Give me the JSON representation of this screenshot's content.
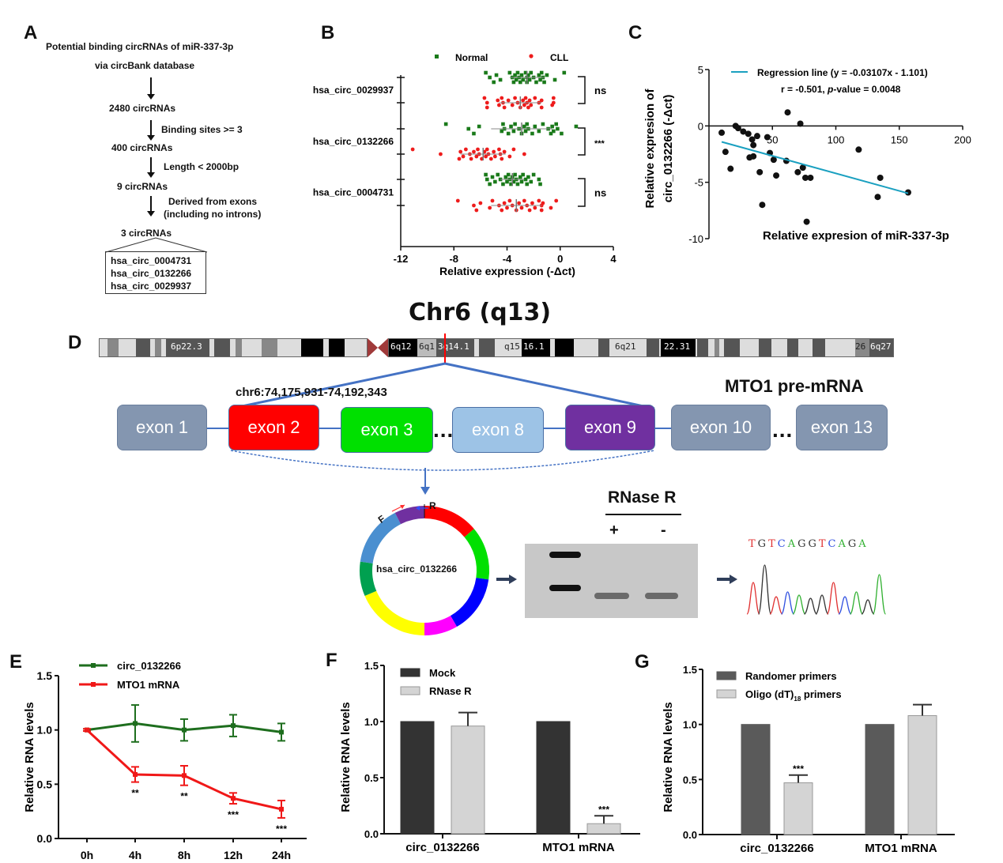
{
  "panels": {
    "A": {
      "letter": "A",
      "title_line1": "Potential binding circRNAs of miR-337-3p",
      "title_line2": "via circBank database",
      "steps": [
        {
          "count": "2480 circRNAs",
          "filter": "Binding sites >= 3"
        },
        {
          "count": "400 circRNAs",
          "filter": "Length < 2000bp"
        },
        {
          "count": "9 circRNAs",
          "filter_line1": "Derived from exons",
          "filter_line2": "(including no introns)"
        },
        {
          "count": "3 circRNAs"
        }
      ],
      "final_list": [
        "hsa_circ_0004731",
        "hsa_circ_0132266",
        "hsa_circ_0029937"
      ]
    },
    "B": {
      "letter": "B"
    },
    "C": {
      "letter": "C"
    },
    "D": {
      "letter": "D",
      "chrom_title": "Chr6 (q13)",
      "chrom_bands": [
        "6p22.3",
        "6q12",
        "6q1",
        "3q14.1",
        "q15",
        "16.1",
        "6q21",
        "22.31",
        "26",
        "6q27"
      ],
      "coord": "chr6:74,175,931-74,192,343",
      "gene_label": "MTO1 pre-mRNA",
      "exons": [
        {
          "label": "exon 1",
          "color": "#8496b0"
        },
        {
          "label": "exon 2",
          "color": "#ff0000"
        },
        {
          "label": "exon 3",
          "color": "#00e000"
        },
        {
          "label": "exon 8",
          "color": "#9dc3e6"
        },
        {
          "label": "exon 9",
          "color": "#7030a0"
        },
        {
          "label": "exon 10",
          "color": "#8496b0"
        },
        {
          "label": "exon 13",
          "color": "#8496b0"
        }
      ],
      "ellipsis": "...",
      "circ_name": "hsa_circ_0132266",
      "circ_segments": [
        "#ff0000",
        "#00e000",
        "#0000ff",
        "#ff00ff",
        "#ffff00",
        "#00a050",
        "#4a8fd0",
        "#7030a0"
      ],
      "primer_f": "F",
      "primer_r": "R",
      "gel_title": "RNase R",
      "gel_lanes": [
        "+",
        "-"
      ],
      "seq_letters": [
        {
          "b": "T",
          "c": "#e03030"
        },
        {
          "b": "G",
          "c": "#333333"
        },
        {
          "b": "T",
          "c": "#e03030"
        },
        {
          "b": "C",
          "c": "#3050e0"
        },
        {
          "b": "A",
          "c": "#30b030"
        },
        {
          "b": "G",
          "c": "#333333"
        },
        {
          "b": "G",
          "c": "#333333"
        },
        {
          "b": "T",
          "c": "#e03030"
        },
        {
          "b": "C",
          "c": "#3050e0"
        },
        {
          "b": "A",
          "c": "#30b030"
        },
        {
          "b": "G",
          "c": "#333333"
        },
        {
          "b": "A",
          "c": "#30b030"
        }
      ]
    },
    "E": {
      "letter": "E"
    },
    "F": {
      "letter": "F"
    },
    "G": {
      "letter": "G"
    }
  },
  "chart_data": [
    {
      "id": "B",
      "type": "scatter",
      "orientation": "horizontal",
      "xlabel": "Relative expression (-Δct)",
      "xlim": [
        -12,
        4
      ],
      "xticks": [
        -12,
        -8,
        -4,
        0,
        4
      ],
      "legend": [
        {
          "name": "Normal",
          "color": "#1a7a1a",
          "marker": "square"
        },
        {
          "name": "CLL",
          "color": "#ee1c1c",
          "marker": "circle"
        }
      ],
      "legend_position": "top",
      "groups": [
        {
          "label": "hsa_circ_0029937",
          "significance": "ns",
          "normal": {
            "mean": -2.5,
            "sd": 1.3,
            "values": [
              -5.6,
              -5.3,
              -5.0,
              -4.8,
              -4.5,
              -3.8,
              -3.6,
              -3.5,
              -3.4,
              -3.3,
              -3.2,
              -3.1,
              -3.0,
              -2.9,
              -2.8,
              -2.6,
              -2.5,
              -2.5,
              -2.4,
              -2.3,
              -2.2,
              -2.0,
              -1.8,
              -1.6,
              -1.5,
              -1.4,
              -1.3,
              -1.2,
              -1.0,
              -0.4,
              0.3
            ]
          },
          "cll": {
            "mean": -3.0,
            "sd": 1.6,
            "values": [
              -5.7,
              -5.5,
              -5.5,
              -4.7,
              -4.6,
              -4.4,
              -4.3,
              -4.2,
              -3.9,
              -3.6,
              -3.4,
              -3.2,
              -3.0,
              -2.8,
              -2.7,
              -2.6,
              -2.5,
              -2.4,
              -2.3,
              -2.2,
              -1.9,
              -1.6,
              -1.4,
              -1.4,
              -0.6,
              -0.5,
              -0.5
            ]
          }
        },
        {
          "label": "hsa_circ_0132266",
          "significance": "***",
          "normal": {
            "mean": -2.9,
            "sd": 2.3,
            "values": [
              -8.6,
              -6.9,
              -6.5,
              -6.1,
              -4.4,
              -4.3,
              -4.2,
              -3.9,
              -3.7,
              -3.5,
              -3.4,
              -3.1,
              -2.9,
              -2.7,
              -2.6,
              -2.5,
              -2.4,
              -2.1,
              -1.9,
              -1.6,
              -1.3,
              -0.9,
              -0.7,
              -0.6,
              -0.5,
              -0.3,
              -0.2,
              0.1,
              1.2
            ]
          },
          "cll": {
            "mean": -5.8,
            "sd": 1.7,
            "values": [
              -11.1,
              -9.0,
              -7.6,
              -7.5,
              -7.3,
              -7.1,
              -6.8,
              -6.7,
              -6.5,
              -6.3,
              -6.2,
              -6.1,
              -5.9,
              -5.7,
              -5.6,
              -5.5,
              -5.4,
              -5.2,
              -5.0,
              -4.9,
              -4.6,
              -4.5,
              -4.4,
              -4.2,
              -3.8,
              -3.5,
              -2.7
            ]
          }
        },
        {
          "label": "hsa_circ_0004731",
          "significance": "ns",
          "normal": {
            "mean": -3.6,
            "sd": 0.9,
            "values": [
              -5.6,
              -5.5,
              -5.3,
              -5.1,
              -4.9,
              -4.7,
              -4.5,
              -4.3,
              -4.1,
              -4.0,
              -3.9,
              -3.8,
              -3.7,
              -3.6,
              -3.5,
              -3.4,
              -3.3,
              -3.2,
              -3.0,
              -2.9,
              -2.8,
              -2.6,
              -2.5,
              -2.4,
              -2.2,
              -2.0,
              -1.6,
              -1.5
            ]
          },
          "cll": {
            "mean": -3.3,
            "sd": 1.9,
            "values": [
              -7.7,
              -6.5,
              -6.3,
              -6.0,
              -5.3,
              -5.1,
              -4.6,
              -4.4,
              -4.2,
              -4.0,
              -3.8,
              -3.6,
              -3.3,
              -3.1,
              -2.9,
              -2.7,
              -2.5,
              -2.3,
              -2.1,
              -1.9,
              -1.6,
              -1.4,
              -1.4,
              -1.3,
              -0.7,
              -0.3
            ]
          }
        }
      ]
    },
    {
      "id": "C",
      "type": "scatter",
      "xlabel": "Relative expresion of miR-337-3p",
      "ylabel_line1": "Relative expresion of",
      "ylabel_line2": "circ_0132266  (-Δct)",
      "xlim": [
        0,
        200
      ],
      "ylim": [
        -10,
        5
      ],
      "xticks": [
        50,
        100,
        150,
        200
      ],
      "yticks": [
        5,
        0,
        -5,
        -10
      ],
      "legend": [
        {
          "name": "Regression line (y = -0.03107x - 1.101)",
          "color": "#1aa0c0"
        }
      ],
      "annotation_r": "r = -0.501,  ",
      "annotation_p_label": "p",
      "annotation_p_value": "-value = 0.0048",
      "regression": {
        "slope": -0.03107,
        "intercept": -1.101,
        "x_range": [
          10,
          157
        ]
      },
      "points": [
        [
          10,
          -0.6
        ],
        [
          13,
          -2.3
        ],
        [
          17,
          -3.8
        ],
        [
          21,
          0.0
        ],
        [
          23,
          -0.2
        ],
        [
          27,
          -0.5
        ],
        [
          31,
          -0.7
        ],
        [
          32,
          -2.8
        ],
        [
          34,
          -1.2
        ],
        [
          35,
          -1.7
        ],
        [
          35,
          -2.7
        ],
        [
          38,
          -0.9
        ],
        [
          40,
          -4.1
        ],
        [
          42,
          -7.0
        ],
        [
          46,
          -1.0
        ],
        [
          48,
          -2.4
        ],
        [
          51,
          -3.0
        ],
        [
          53,
          -4.4
        ],
        [
          61,
          -3.1
        ],
        [
          62,
          1.2
        ],
        [
          70,
          -4.1
        ],
        [
          72,
          0.2
        ],
        [
          74,
          -3.7
        ],
        [
          76,
          -4.6
        ],
        [
          77,
          -8.5
        ],
        [
          80,
          -4.6
        ],
        [
          118,
          -2.1
        ],
        [
          133,
          -6.3
        ],
        [
          135,
          -4.6
        ],
        [
          157,
          -5.9
        ]
      ]
    },
    {
      "id": "E",
      "type": "line",
      "ylabel": "Relative RNA levels",
      "ylim": [
        0,
        1.5
      ],
      "yticks": [
        0.0,
        0.5,
        1.0,
        1.5
      ],
      "categories": [
        "0h",
        "4h",
        "8h",
        "12h",
        "24h"
      ],
      "legend_position": "top-left",
      "series": [
        {
          "name": "circ_0132266",
          "color": "#1e6e1e",
          "values": [
            1.0,
            1.06,
            1.0,
            1.04,
            0.98
          ],
          "errors": [
            0.01,
            0.17,
            0.1,
            0.1,
            0.08
          ],
          "marks": [
            "",
            "",
            "",
            "",
            ""
          ]
        },
        {
          "name": "MTO1 mRNA",
          "color": "#f01818",
          "values": [
            1.0,
            0.59,
            0.58,
            0.37,
            0.27
          ],
          "errors": [
            0.01,
            0.07,
            0.09,
            0.05,
            0.08
          ],
          "marks": [
            "",
            "**",
            "**",
            "***",
            "***"
          ]
        }
      ]
    },
    {
      "id": "F",
      "type": "bar",
      "ylabel": "Relative RNA levels",
      "ylim": [
        0,
        1.5
      ],
      "yticks": [
        0.0,
        0.5,
        1.0,
        1.5
      ],
      "categories": [
        "circ_0132266",
        "MTO1 mRNA"
      ],
      "legend_position": "top-left",
      "series": [
        {
          "name": "Mock",
          "color": "#333333",
          "values": [
            1.0,
            1.0
          ],
          "errors": [
            0,
            0
          ],
          "marks": [
            "",
            ""
          ]
        },
        {
          "name": "RNase R",
          "color": "#d4d4d4",
          "values": [
            0.96,
            0.09
          ],
          "errors": [
            0.12,
            0.07
          ],
          "marks": [
            "",
            "***"
          ]
        }
      ]
    },
    {
      "id": "G",
      "type": "bar",
      "ylabel": "Relative RNA levels",
      "ylim": [
        0,
        1.5
      ],
      "yticks": [
        0.0,
        0.5,
        1.0,
        1.5
      ],
      "categories": [
        "circ_0132266",
        "MTO1 mRNA"
      ],
      "legend_position": "top-left",
      "series": [
        {
          "name": "Randomer  primers",
          "color": "#5a5a5a",
          "values": [
            1.0,
            1.0
          ],
          "errors": [
            0,
            0
          ],
          "marks": [
            "",
            ""
          ]
        },
        {
          "name": "Oligo (dT)",
          "name_sub": "18",
          "name_suffix": " primers",
          "color": "#d4d4d4",
          "values": [
            0.47,
            1.08
          ],
          "errors": [
            0.07,
            0.1
          ],
          "marks": [
            "***",
            ""
          ]
        }
      ]
    }
  ]
}
